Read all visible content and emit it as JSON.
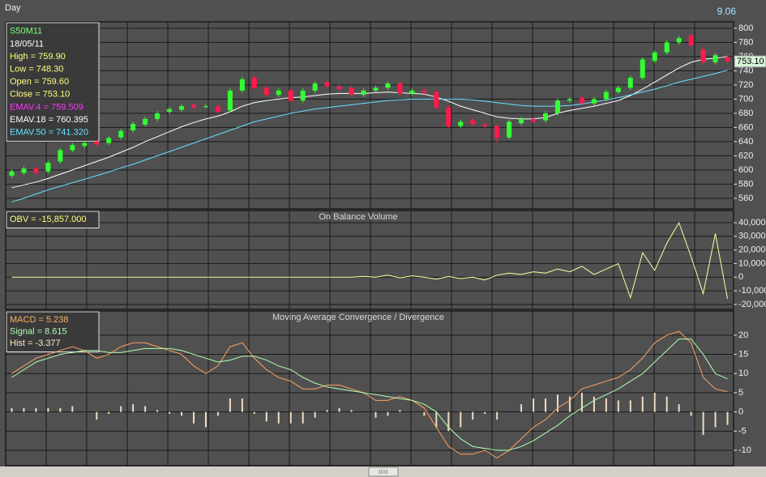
{
  "header": {
    "period": "Day",
    "clock": "9.06"
  },
  "chart_data": [
    {
      "type": "candlestick",
      "legend": [
        {
          "text": "S50M11",
          "color": "#7dff7d"
        },
        {
          "text": "18/05/11",
          "color": "#ffffff"
        },
        {
          "text": "High  = 759.90",
          "color": "#ffff80"
        },
        {
          "text": "Low  = 748.30",
          "color": "#ffff80"
        },
        {
          "text": "Open = 759.60",
          "color": "#ffff80"
        },
        {
          "text": "Close = 753.10",
          "color": "#ffff80"
        },
        {
          "text": "EMAV.4 = 759.509",
          "color": "#ff33ff"
        },
        {
          "text": "EMAV.18 = 760.395",
          "color": "#ffffff"
        },
        {
          "text": "EMAV.50 = 741.320",
          "color": "#66e0ff"
        }
      ],
      "open": [
        592,
        596,
        602,
        598,
        612,
        628,
        634,
        640,
        638,
        646,
        656,
        664,
        672,
        682,
        685,
        692,
        690,
        690,
        684,
        712,
        730,
        716,
        706,
        712,
        698,
        712,
        724,
        718,
        716,
        706,
        712,
        716,
        722,
        708,
        712,
        710,
        688,
        662,
        670,
        664,
        662,
        646,
        666,
        672,
        670,
        680,
        698,
        702,
        694,
        700,
        710,
        716,
        730,
        754,
        766,
        780,
        790,
        770,
        752,
        759.6
      ],
      "high": [
        601,
        605,
        605,
        613,
        631,
        638,
        641,
        643,
        648,
        658,
        668,
        675,
        683,
        689,
        693,
        695,
        693,
        693,
        715,
        731,
        733,
        719,
        715,
        715,
        715,
        725,
        727,
        721,
        719,
        715,
        719,
        725,
        725,
        715,
        715,
        713,
        691,
        671,
        673,
        667,
        665,
        671,
        675,
        675,
        683,
        701,
        703,
        705,
        703,
        713,
        719,
        733,
        759,
        769,
        783,
        789,
        793,
        773,
        765,
        759.9
      ],
      "low": [
        589,
        593,
        593,
        595,
        609,
        625,
        631,
        633,
        635,
        643,
        653,
        661,
        669,
        679,
        682,
        685,
        687,
        679,
        681,
        709,
        713,
        703,
        703,
        695,
        695,
        709,
        715,
        711,
        703,
        703,
        709,
        713,
        705,
        705,
        707,
        685,
        659,
        659,
        662,
        659,
        638,
        643,
        663,
        665,
        667,
        677,
        695,
        691,
        691,
        697,
        707,
        713,
        727,
        751,
        763,
        777,
        773,
        749,
        749,
        748.3
      ],
      "close": [
        598,
        602,
        596,
        610,
        628,
        635,
        638,
        636,
        645,
        655,
        665,
        672,
        680,
        686,
        690,
        688,
        690,
        682,
        712,
        728,
        716,
        706,
        712,
        698,
        712,
        722,
        718,
        714,
        706,
        712,
        716,
        722,
        708,
        712,
        710,
        688,
        662,
        668,
        665,
        662,
        645,
        668,
        672,
        668,
        680,
        698,
        700,
        694,
        700,
        710,
        716,
        730,
        756,
        766,
        780,
        786,
        776,
        752,
        762,
        753.1
      ],
      "up_color": "#33ff33",
      "down_color": "#ff1a4d",
      "series": [
        {
          "color": "#ffffff",
          "values": [
            575,
            579,
            583,
            588,
            594,
            600,
            606,
            612,
            618,
            625,
            632,
            640,
            647,
            654,
            661,
            667,
            672,
            676,
            682,
            690,
            695,
            698,
            700,
            702,
            703,
            705,
            707,
            708,
            708,
            708,
            709,
            710,
            709,
            708,
            707,
            703,
            697,
            690,
            685,
            680,
            675,
            673,
            672,
            672,
            674,
            680,
            684,
            687,
            690,
            694,
            698,
            705,
            714,
            724,
            734,
            744,
            752,
            756,
            758,
            760
          ]
        },
        {
          "color": "#66e0ff",
          "values": [
            555,
            560,
            566,
            572,
            577,
            582,
            587,
            592,
            597,
            603,
            608,
            614,
            620,
            626,
            632,
            638,
            644,
            650,
            656,
            662,
            668,
            672,
            676,
            680,
            683,
            686,
            688,
            690,
            692,
            694,
            696,
            698,
            699,
            700,
            700,
            700,
            700,
            700,
            699,
            697,
            695,
            693,
            691,
            690,
            690,
            690,
            691,
            693,
            696,
            699,
            702,
            706,
            710,
            714,
            719,
            724,
            728,
            732,
            736,
            741
          ]
        }
      ],
      "ylim": [
        545,
        809
      ],
      "yticks": [
        560,
        580,
        600,
        620,
        640,
        660,
        680,
        700,
        720,
        740,
        760,
        780,
        800
      ],
      "grid": true,
      "last_label": "753.10"
    },
    {
      "type": "line",
      "title": "On Balance Volume",
      "legend": [
        {
          "text": "OBV = -15,857.000",
          "color": "#ffff80"
        }
      ],
      "series": [
        {
          "color": "#ffffa0",
          "values": [
            0,
            0,
            0,
            0,
            0,
            0,
            0,
            0,
            0,
            0,
            0,
            0,
            0,
            0,
            0,
            0,
            0,
            0,
            0,
            0,
            0,
            0,
            0,
            0,
            0,
            0,
            0,
            0,
            0,
            500,
            0,
            1500,
            -500,
            1000,
            0,
            -1500,
            500,
            -1000,
            0,
            -2000,
            1500,
            3000,
            2000,
            4000,
            3000,
            6000,
            4000,
            8000,
            2000,
            6000,
            10000,
            -15000,
            18000,
            5000,
            25000,
            40000,
            15000,
            -12000,
            32000,
            -15857
          ]
        }
      ],
      "ylim": [
        -23600,
        48900
      ],
      "yticks": [
        {
          "value": 40000,
          "label": "40,000"
        },
        {
          "value": 30000,
          "label": "30,000"
        },
        {
          "value": 20000,
          "label": "20,000"
        },
        {
          "value": 10000,
          "label": "10,000"
        },
        0,
        {
          "value": -10000,
          "label": "-10,000"
        },
        {
          "value": -20000,
          "label": "-20,000"
        }
      ],
      "grid": true
    },
    {
      "type": "macd",
      "title": "Moving Average Convergence / Divergence",
      "legend": [
        {
          "text": "MACD = 5.238",
          "color": "#ffb060"
        },
        {
          "text": "Signal = 8.615",
          "color": "#b0ffb0"
        },
        {
          "text": "Hist = -3.377",
          "color": "#ffe8c8"
        }
      ],
      "series": [
        {
          "kind": "histogram",
          "color": "#f0dcc0",
          "values": [
            1,
            1,
            1,
            1,
            1,
            1.5,
            0,
            -2,
            -0.5,
            1.5,
            2,
            1.5,
            0.5,
            -0.5,
            -1,
            -3,
            -4,
            -1,
            3.5,
            3.5,
            -0.5,
            -2.5,
            -3,
            -3,
            -3,
            -1.5,
            0.5,
            1,
            0.5,
            0,
            -1.5,
            -1,
            0.5,
            0,
            -1,
            -4,
            -5,
            -4,
            -2,
            -0.5,
            -2,
            0,
            2,
            3.5,
            3.5,
            4.5,
            4,
            5,
            4,
            3.5,
            3,
            3,
            4,
            5,
            4,
            2,
            -1,
            -6,
            -4,
            -3.377
          ]
        },
        {
          "kind": "line",
          "color": "#ffa060",
          "values": [
            10,
            12,
            14,
            15,
            16,
            17,
            16,
            14,
            15,
            17,
            18,
            18,
            17,
            16,
            15,
            12,
            10,
            12,
            17,
            18,
            14,
            11,
            9,
            8,
            6,
            6,
            7,
            7,
            6,
            5,
            3,
            3,
            4,
            3,
            1,
            -4,
            -9,
            -11,
            -11,
            -10,
            -12,
            -10,
            -7,
            -4,
            -2,
            1,
            3,
            6,
            7,
            8,
            9,
            11,
            14,
            18,
            20,
            21,
            18,
            9,
            6,
            5.238
          ]
        },
        {
          "kind": "line",
          "color": "#b0ffb0",
          "values": [
            9,
            11,
            13,
            14,
            15,
            15.5,
            16,
            16,
            15.5,
            15.5,
            16,
            16.5,
            16.5,
            16.5,
            16,
            15,
            14,
            13,
            13.5,
            14.5,
            14.5,
            13.5,
            12,
            11,
            9,
            7.5,
            6.5,
            6,
            5.5,
            5,
            4.5,
            4,
            3.5,
            3,
            2,
            0,
            -4,
            -7,
            -9,
            -9.5,
            -10,
            -10,
            -9,
            -7.5,
            -5.5,
            -3.5,
            -1,
            1,
            3,
            4.5,
            6,
            8,
            10,
            13,
            16,
            19,
            19,
            15,
            10,
            8.615
          ]
        }
      ],
      "ylim": [
        -14,
        26.3
      ],
      "yticks": [
        20,
        15,
        10,
        5,
        0,
        -5,
        -10
      ],
      "grid": true
    }
  ]
}
